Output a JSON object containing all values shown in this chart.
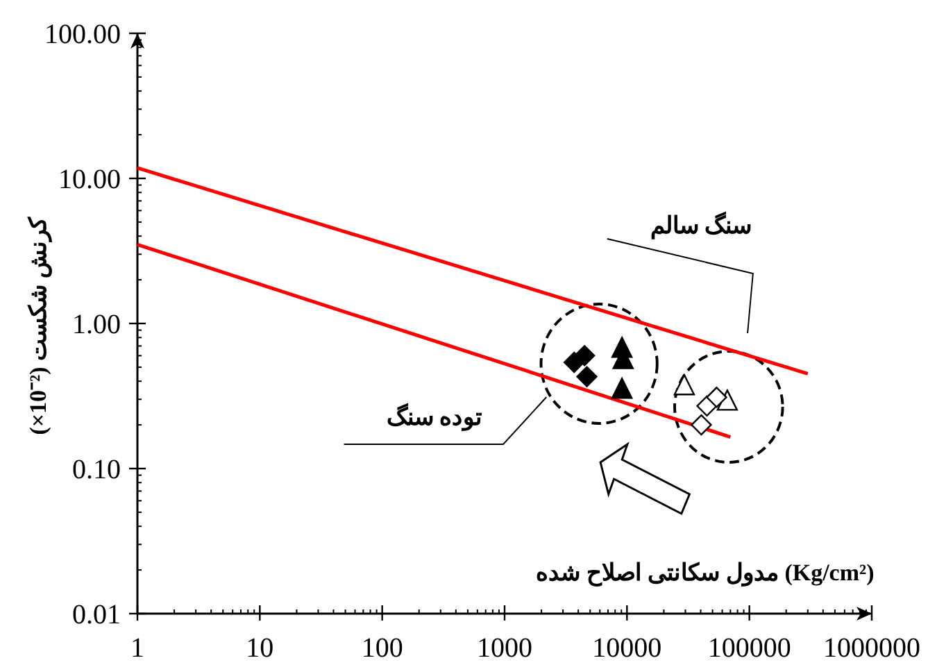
{
  "chart_data": {
    "type": "scatter",
    "xlabel": "مدول سکانتی اصلاح شده (Kg/cm²)",
    "ylabel": "کرنش شکست (×10⁻²)",
    "log": "xy",
    "xlim": [
      1,
      1000000
    ],
    "ylim": [
      0.01,
      100
    ],
    "xticks": [
      1,
      10,
      100,
      1000,
      10000,
      100000,
      1000000
    ],
    "yticks": [
      {
        "value": 0.01,
        "label": "0.01"
      },
      {
        "value": 0.1,
        "label": "0.10"
      },
      {
        "value": 1,
        "label": "1.00"
      },
      {
        "value": 10,
        "label": "10.00"
      },
      {
        "value": 100,
        "label": "100.00"
      }
    ],
    "grid": false,
    "series": [
      {
        "type": "line",
        "color": "#ff0000",
        "marker": "none",
        "line_style": "solid",
        "x": [
          1,
          300000
        ],
        "values": [
          11.8,
          0.45
        ]
      },
      {
        "type": "line",
        "color": "#ff0000",
        "marker": "none",
        "line_style": "solid",
        "x": [
          1,
          70000
        ],
        "values": [
          3.5,
          0.165
        ]
      },
      {
        "type": "scatter",
        "color": "#000000",
        "marker": "diamond",
        "x": [
          3700,
          4500,
          4700
        ],
        "values": [
          0.54,
          0.6,
          0.43
        ]
      },
      {
        "type": "scatter",
        "color": "#000000",
        "marker": "triangle",
        "x": [
          9100,
          9300,
          9100
        ],
        "values": [
          0.67,
          0.56,
          0.35
        ]
      },
      {
        "type": "scatter",
        "color": "#ffffff",
        "marker": "triangle",
        "x": [
          29400,
          66000
        ],
        "values": [
          0.37,
          0.29
        ]
      },
      {
        "type": "scatter",
        "color": "#ffffff",
        "marker": "diamond",
        "x": [
          45000,
          54000,
          40500
        ],
        "values": [
          0.27,
          0.31,
          0.2
        ]
      }
    ],
    "annotations": [
      "سنگ سالم",
      "توده سنگ"
    ]
  }
}
